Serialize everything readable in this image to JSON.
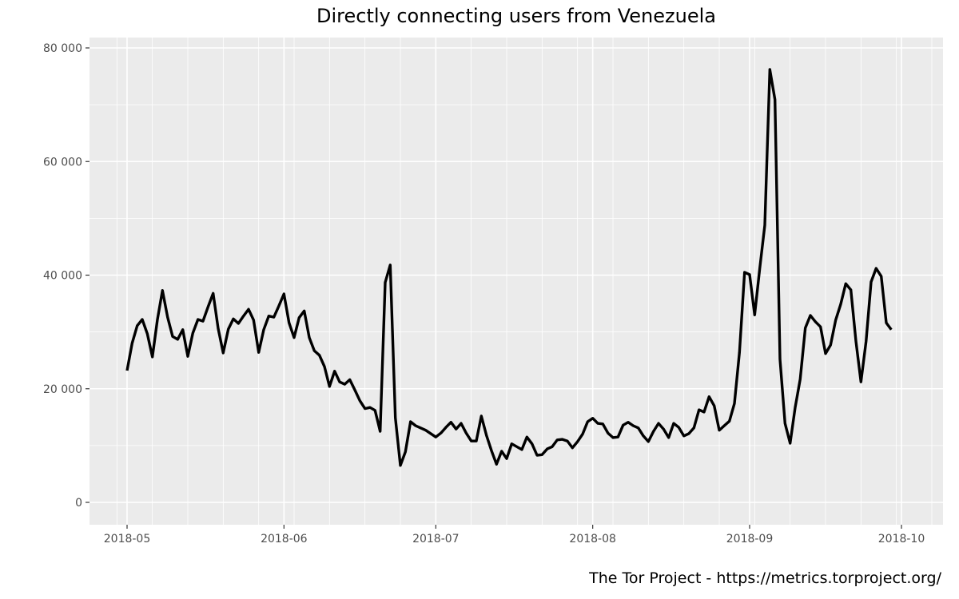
{
  "chart_data": {
    "type": "line",
    "title": "Directly connecting users from Venezuela",
    "caption": "The Tor Project - https://metrics.torproject.org/",
    "xlabel": "",
    "ylabel": "",
    "ylim": [
      0,
      80000
    ],
    "xlim": [
      "2018-05-01",
      "2018-10-01"
    ],
    "grid": true,
    "line_color": "#000000",
    "panel_background": "#ebebeb",
    "y_ticks": [
      {
        "value": 0,
        "label": "0"
      },
      {
        "value": 20000,
        "label": "20 000"
      },
      {
        "value": 40000,
        "label": "40 000"
      },
      {
        "value": 60000,
        "label": "60 000"
      },
      {
        "value": 80000,
        "label": "80 000"
      }
    ],
    "x_ticks": [
      {
        "value": "2018-05-01",
        "label": "2018-05"
      },
      {
        "value": "2018-06-01",
        "label": "2018-06"
      },
      {
        "value": "2018-07-01",
        "label": "2018-07"
      },
      {
        "value": "2018-08-01",
        "label": "2018-08"
      },
      {
        "value": "2018-09-01",
        "label": "2018-09"
      },
      {
        "value": "2018-10-01",
        "label": "2018-10"
      }
    ],
    "x": [
      "2018-05-01",
      "2018-05-02",
      "2018-05-03",
      "2018-05-04",
      "2018-05-05",
      "2018-05-06",
      "2018-05-07",
      "2018-05-08",
      "2018-05-09",
      "2018-05-10",
      "2018-05-11",
      "2018-05-12",
      "2018-05-13",
      "2018-05-14",
      "2018-05-15",
      "2018-05-16",
      "2018-05-17",
      "2018-05-18",
      "2018-05-19",
      "2018-05-20",
      "2018-05-21",
      "2018-05-22",
      "2018-05-23",
      "2018-05-24",
      "2018-05-25",
      "2018-05-26",
      "2018-05-27",
      "2018-05-28",
      "2018-05-29",
      "2018-05-30",
      "2018-05-31",
      "2018-06-01",
      "2018-06-02",
      "2018-06-03",
      "2018-06-04",
      "2018-06-05",
      "2018-06-06",
      "2018-06-07",
      "2018-06-08",
      "2018-06-09",
      "2018-06-10",
      "2018-06-11",
      "2018-06-12",
      "2018-06-13",
      "2018-06-14",
      "2018-06-15",
      "2018-06-16",
      "2018-06-17",
      "2018-06-18",
      "2018-06-19",
      "2018-06-20",
      "2018-06-21",
      "2018-06-22",
      "2018-06-23",
      "2018-06-24",
      "2018-06-25",
      "2018-06-26",
      "2018-06-27",
      "2018-06-28",
      "2018-06-29",
      "2018-06-30",
      "2018-07-01",
      "2018-07-02",
      "2018-07-03",
      "2018-07-04",
      "2018-07-05",
      "2018-07-06",
      "2018-07-07",
      "2018-07-08",
      "2018-07-09",
      "2018-07-10",
      "2018-07-11",
      "2018-07-12",
      "2018-07-13",
      "2018-07-14",
      "2018-07-15",
      "2018-07-16",
      "2018-07-17",
      "2018-07-18",
      "2018-07-19",
      "2018-07-20",
      "2018-07-21",
      "2018-07-22",
      "2018-07-23",
      "2018-07-24",
      "2018-07-25",
      "2018-07-26",
      "2018-07-27",
      "2018-07-28",
      "2018-07-29",
      "2018-07-30",
      "2018-07-31",
      "2018-08-01",
      "2018-08-02",
      "2018-08-03",
      "2018-08-04",
      "2018-08-05",
      "2018-08-06",
      "2018-08-07",
      "2018-08-08",
      "2018-08-09",
      "2018-08-10",
      "2018-08-11",
      "2018-08-12",
      "2018-08-13",
      "2018-08-14",
      "2018-08-15",
      "2018-08-16",
      "2018-08-17",
      "2018-08-18",
      "2018-08-19",
      "2018-08-20",
      "2018-08-21",
      "2018-08-22",
      "2018-08-23",
      "2018-08-24",
      "2018-08-25",
      "2018-08-26",
      "2018-08-27",
      "2018-08-28",
      "2018-08-29",
      "2018-08-30",
      "2018-08-31",
      "2018-09-01",
      "2018-09-02",
      "2018-09-03",
      "2018-09-04",
      "2018-09-05",
      "2018-09-06",
      "2018-09-07",
      "2018-09-08",
      "2018-09-09",
      "2018-09-10",
      "2018-09-11",
      "2018-09-12",
      "2018-09-13",
      "2018-09-14",
      "2018-09-15",
      "2018-09-16",
      "2018-09-17",
      "2018-09-18",
      "2018-09-19",
      "2018-09-20",
      "2018-09-21",
      "2018-09-22",
      "2018-09-23",
      "2018-09-24",
      "2018-09-25",
      "2018-09-26",
      "2018-09-27",
      "2018-09-28",
      "2018-09-29"
    ],
    "values": [
      23200,
      28000,
      31100,
      32200,
      29700,
      25600,
      32200,
      37300,
      32600,
      29200,
      28700,
      30400,
      25700,
      29800,
      32200,
      31900,
      34400,
      36800,
      30600,
      26300,
      30500,
      32300,
      31500,
      32800,
      34000,
      32100,
      26400,
      30400,
      32800,
      32600,
      34600,
      36700,
      31600,
      29000,
      32500,
      33700,
      29000,
      26700,
      25900,
      23900,
      20400,
      23100,
      21200,
      20800,
      21600,
      19800,
      17900,
      16500,
      16700,
      16200,
      12500,
      38700,
      41800,
      14900,
      6500,
      8900,
      14200,
      13500,
      13100,
      12700,
      12100,
      11500,
      12200,
      13200,
      14100,
      12900,
      13900,
      12200,
      10800,
      10800,
      15200,
      11800,
      9100,
      6700,
      9000,
      7700,
      10300,
      9800,
      9300,
      11500,
      10300,
      8300,
      8400,
      9400,
      9800,
      11000,
      11100,
      10800,
      9600,
      10700,
      12000,
      14200,
      14800,
      13900,
      13800,
      12200,
      11400,
      11500,
      13600,
      14100,
      13500,
      13100,
      11700,
      10700,
      12500,
      13900,
      12900,
      11400,
      13900,
      13200,
      11700,
      12100,
      13100,
      16300,
      15900,
      18600,
      17000,
      12700,
      13500,
      14300,
      17400,
      26400,
      40500,
      40100,
      33000,
      41200,
      48800,
      76200,
      70900,
      25200,
      13900,
      10400,
      16700,
      21700,
      30700,
      32900,
      31800,
      30900,
      26200,
      27700,
      32100,
      34900,
      38500,
      37400,
      28400,
      21200,
      28300,
      38800,
      41200,
      39800,
      31600,
      30400
    ]
  }
}
